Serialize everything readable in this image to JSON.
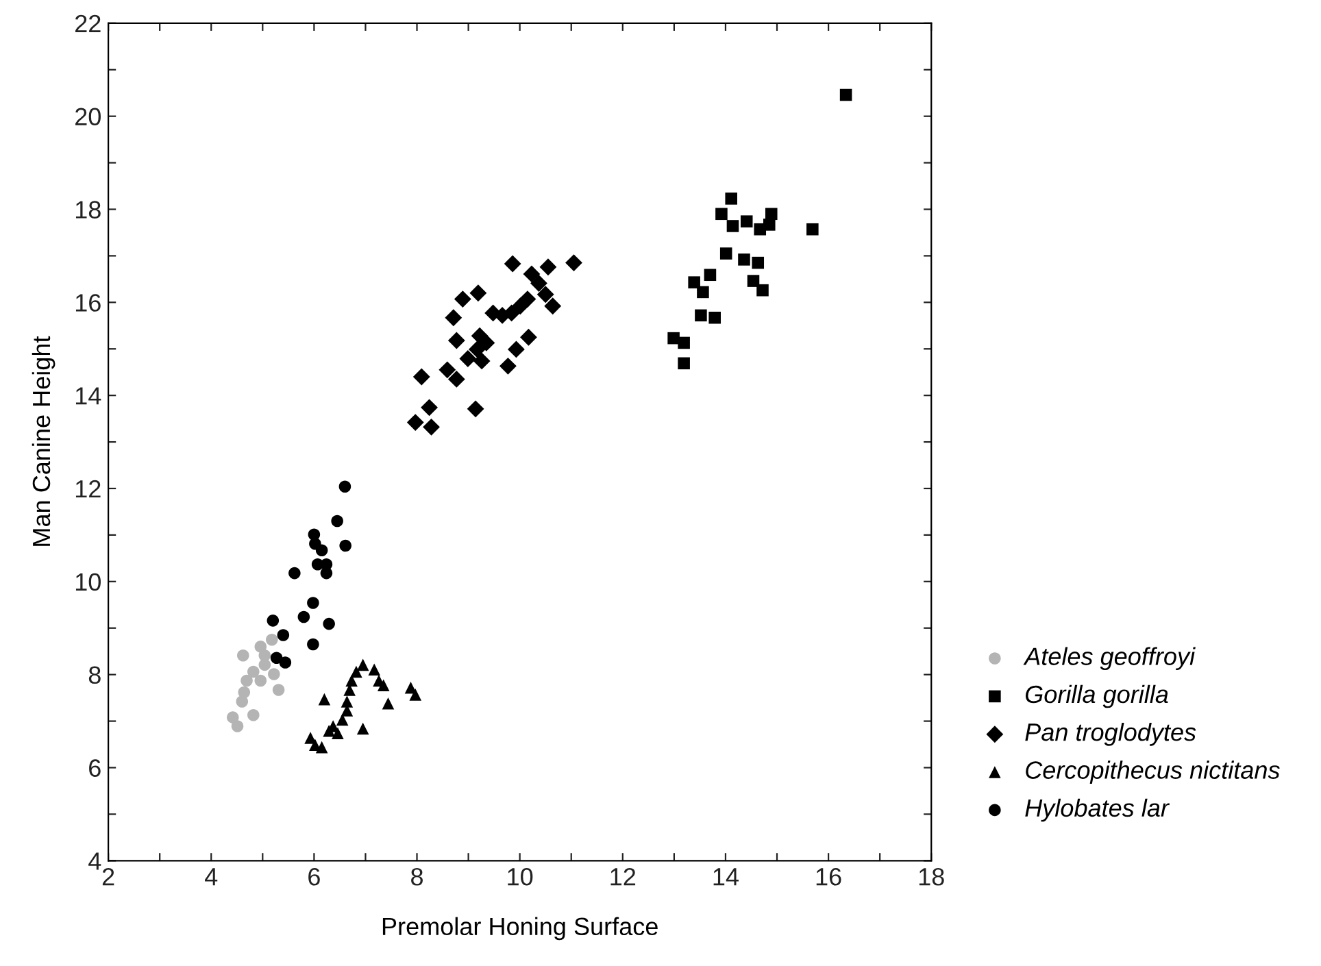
{
  "chart_data": {
    "type": "scatter",
    "xlabel": "Premolar Honing Surface",
    "ylabel": "Man Canine Height",
    "xlim": [
      2,
      18
    ],
    "ylim": [
      4,
      22
    ],
    "xticks": [
      2,
      {
        "value": 3,
        "label": null
      },
      4,
      {
        "value": 5,
        "label": null
      },
      6,
      {
        "value": 7,
        "label": null
      },
      8,
      {
        "value": 9,
        "label": null
      },
      10,
      {
        "value": 11,
        "label": null
      },
      12,
      {
        "value": 13,
        "label": null
      },
      14,
      {
        "value": 15,
        "label": null
      },
      16,
      {
        "value": 17,
        "label": null
      },
      18
    ],
    "yticks": [
      4,
      {
        "value": 5,
        "label": null
      },
      6,
      {
        "value": 7,
        "label": null
      },
      8,
      {
        "value": 9,
        "label": null
      },
      10,
      {
        "value": 11,
        "label": null
      },
      12,
      {
        "value": 13,
        "label": null
      },
      14,
      {
        "value": 15,
        "label": null
      },
      16,
      {
        "value": 17,
        "label": null
      },
      18,
      {
        "value": 19,
        "label": null
      },
      20,
      {
        "value": 21,
        "label": null
      },
      22
    ],
    "grid": false,
    "legend": "bottom right",
    "series": [
      {
        "name": "Ateles geoffroyi",
        "color": "#b4b4b4",
        "marker": "circle",
        "x": [
          4.62,
          4.96,
          5.18,
          5.04,
          4.82,
          5.22,
          4.69,
          4.96,
          4.64,
          5.31,
          4.6,
          4.82,
          4.42,
          4.51,
          5.04
        ],
        "values": [
          8.41,
          8.6,
          8.75,
          8.21,
          8.06,
          8.01,
          7.87,
          7.87,
          7.62,
          7.67,
          7.42,
          7.13,
          7.08,
          6.89,
          8.41
        ]
      },
      {
        "name": "Gorilla gorilla",
        "color": "#000000",
        "marker": "square",
        "x": [
          16.34,
          15.69,
          14.11,
          13.92,
          14.14,
          14.41,
          14.67,
          14.89,
          14.85,
          14.01,
          14.36,
          14.63,
          14.54,
          14.72,
          13.39,
          13.7,
          13.56,
          13.52,
          13.79,
          12.99,
          13.19,
          13.19
        ],
        "values": [
          20.46,
          17.57,
          18.23,
          17.9,
          17.64,
          17.74,
          17.57,
          17.9,
          17.67,
          17.05,
          16.92,
          16.85,
          16.46,
          16.26,
          16.43,
          16.59,
          16.22,
          15.72,
          15.67,
          15.23,
          15.13,
          14.69
        ]
      },
      {
        "name": "Pan troglodytes",
        "color": "#000000",
        "marker": "diamond",
        "x": [
          9.86,
          10.55,
          11.05,
          10.23,
          10.37,
          10.5,
          10.64,
          10.15,
          10.01,
          9.84,
          9.66,
          9.48,
          9.19,
          8.89,
          8.71,
          8.77,
          9.22,
          9.35,
          9.17,
          8.99,
          9.26,
          9.93,
          10.17,
          9.77,
          8.59,
          8.77,
          8.09,
          9.14,
          8.24,
          7.97,
          8.28
        ],
        "values": [
          16.83,
          16.76,
          16.85,
          16.61,
          16.41,
          16.17,
          15.92,
          16.07,
          15.92,
          15.77,
          15.72,
          15.77,
          16.2,
          16.07,
          15.67,
          15.18,
          15.28,
          15.13,
          14.99,
          14.79,
          14.74,
          14.99,
          15.25,
          14.63,
          14.55,
          14.35,
          14.4,
          13.71,
          13.74,
          13.42,
          13.32
        ]
      },
      {
        "name": "Cercopithecus nictitans",
        "color": "#000000",
        "marker": "triangle",
        "x": [
          6.95,
          6.82,
          7.17,
          6.73,
          7.26,
          7.35,
          6.69,
          7.88,
          7.97,
          6.2,
          6.64,
          7.44,
          6.64,
          6.55,
          6.37,
          6.95,
          6.29,
          6.46,
          5.93,
          6.02,
          6.15
        ],
        "values": [
          8.21,
          8.06,
          8.11,
          7.87,
          7.87,
          7.77,
          7.67,
          7.72,
          7.57,
          7.47,
          7.42,
          7.38,
          7.23,
          7.03,
          6.89,
          6.84,
          6.79,
          6.74,
          6.64,
          6.49,
          6.44
        ]
      },
      {
        "name": "Hylobates lar",
        "color": "#000000",
        "marker": "circle",
        "x": [
          6.6,
          6.45,
          6.0,
          6.61,
          6.02,
          6.15,
          6.07,
          6.24,
          5.62,
          6.24,
          5.98,
          5.8,
          6.29,
          5.2,
          5.4,
          5.98,
          5.27,
          5.44
        ],
        "values": [
          12.04,
          11.3,
          11.01,
          10.77,
          10.81,
          10.67,
          10.37,
          10.37,
          10.18,
          10.18,
          9.54,
          9.24,
          9.09,
          9.16,
          8.85,
          8.65,
          8.36,
          8.26
        ]
      }
    ]
  }
}
